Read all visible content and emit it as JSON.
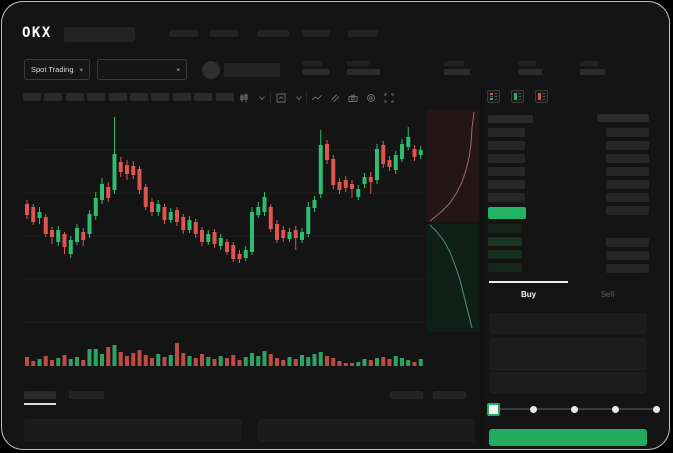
{
  "brand": {
    "name": "OKX"
  },
  "colors": {
    "background": "#141414",
    "candle_green": "#2ebd70",
    "candle_red": "#de544e",
    "accent_green": "#23ab5f",
    "last_price_green": "#23b565",
    "placeholder": "#262626"
  },
  "header": {
    "nav_item_count": 5
  },
  "market_bar": {
    "pair_selector": {
      "label": "Spot Trading"
    },
    "secondary_selector": {
      "label": ""
    },
    "stat_group_count": 5
  },
  "chart_toolbar": {
    "timeframe_count": 10,
    "icons": [
      "candle-style-icon",
      "chevron-down-icon",
      "indicator-box-icon",
      "chevron-down-icon",
      "line-wave-icon",
      "compare-slash-icon",
      "camera-icon",
      "settings-gear-icon",
      "fullscreen-icon"
    ]
  },
  "chart_data": {
    "type": "candlestick_with_volume",
    "title": "",
    "xlabel": "",
    "ylabel": "",
    "grid": "horizontal",
    "gridline_count": 5,
    "candles_ohlc": [
      [
        98,
        102,
        83,
        87
      ],
      [
        95,
        98,
        77,
        80
      ],
      [
        84,
        95,
        78,
        90
      ],
      [
        85,
        88,
        65,
        68
      ],
      [
        72,
        75,
        58,
        65
      ],
      [
        60,
        76,
        56,
        72
      ],
      [
        68,
        70,
        48,
        55
      ],
      [
        48,
        66,
        44,
        62
      ],
      [
        60,
        78,
        57,
        74
      ],
      [
        70,
        74,
        56,
        62
      ],
      [
        68,
        92,
        64,
        88
      ],
      [
        86,
        110,
        82,
        104
      ],
      [
        102,
        124,
        98,
        118
      ],
      [
        115,
        120,
        100,
        104
      ],
      [
        112,
        185,
        108,
        148
      ],
      [
        140,
        145,
        125,
        130
      ],
      [
        137,
        142,
        122,
        128
      ],
      [
        136,
        141,
        123,
        127
      ],
      [
        133,
        136,
        108,
        112
      ],
      [
        115,
        118,
        92,
        95
      ],
      [
        100,
        104,
        86,
        90
      ],
      [
        90,
        102,
        86,
        98
      ],
      [
        95,
        98,
        78,
        82
      ],
      [
        82,
        94,
        79,
        90
      ],
      [
        92,
        95,
        76,
        80
      ],
      [
        85,
        88,
        68,
        72
      ],
      [
        72,
        86,
        69,
        82
      ],
      [
        80,
        83,
        64,
        68
      ],
      [
        72,
        75,
        56,
        60
      ],
      [
        60,
        72,
        57,
        68
      ],
      [
        70,
        73,
        54,
        58
      ],
      [
        56,
        68,
        52,
        64
      ],
      [
        60,
        63,
        47,
        50
      ],
      [
        57,
        60,
        40,
        43
      ],
      [
        48,
        52,
        39,
        43
      ],
      [
        44,
        56,
        41,
        52
      ],
      [
        50,
        95,
        47,
        90
      ],
      [
        87,
        100,
        84,
        95
      ],
      [
        90,
        110,
        86,
        105
      ],
      [
        95,
        98,
        70,
        73
      ],
      [
        78,
        82,
        59,
        62
      ],
      [
        72,
        76,
        60,
        64
      ],
      [
        63,
        74,
        60,
        70
      ],
      [
        72,
        76,
        52,
        64
      ],
      [
        62,
        74,
        59,
        70
      ],
      [
        68,
        100,
        65,
        95
      ],
      [
        94,
        106,
        90,
        102
      ],
      [
        108,
        172,
        104,
        157
      ],
      [
        158,
        162,
        138,
        142
      ],
      [
        143,
        147,
        113,
        117
      ],
      [
        120,
        124,
        108,
        112
      ],
      [
        122,
        126,
        110,
        114
      ],
      [
        118,
        122,
        104,
        113
      ],
      [
        105,
        117,
        102,
        113
      ],
      [
        118,
        129,
        114,
        125
      ],
      [
        125,
        130,
        108,
        120
      ],
      [
        122,
        158,
        118,
        153
      ],
      [
        157,
        161,
        134,
        138
      ],
      [
        142,
        146,
        131,
        135
      ],
      [
        132,
        151,
        128,
        147
      ],
      [
        143,
        163,
        140,
        158
      ],
      [
        155,
        175,
        152,
        165
      ],
      [
        153,
        157,
        141,
        145
      ],
      [
        147,
        156,
        143,
        152
      ]
    ],
    "volume": [
      9,
      5,
      7,
      10,
      6,
      8,
      11,
      7,
      9,
      6,
      17,
      17,
      12,
      19,
      21,
      14,
      10,
      13,
      16,
      11,
      8,
      12,
      9,
      11,
      23,
      13,
      10,
      8,
      12,
      9,
      7,
      10,
      8,
      11,
      6,
      9,
      13,
      10,
      15,
      12,
      8,
      6,
      9,
      7,
      11,
      9,
      12,
      14,
      10,
      8,
      5,
      3,
      3,
      4,
      7,
      6,
      8,
      9,
      7,
      10,
      8,
      6,
      4,
      7
    ]
  },
  "depth_chart": {
    "ask_line": [
      [
        47,
        2
      ],
      [
        45,
        18
      ],
      [
        44,
        34
      ],
      [
        42,
        48
      ],
      [
        39,
        60
      ],
      [
        35,
        72
      ],
      [
        29,
        84
      ],
      [
        22,
        94
      ],
      [
        13,
        103
      ],
      [
        3,
        111
      ]
    ],
    "bid_line": [
      [
        3,
        115
      ],
      [
        10,
        122
      ],
      [
        17,
        131
      ],
      [
        23,
        142
      ],
      [
        28,
        155
      ],
      [
        33,
        170
      ],
      [
        37,
        186
      ],
      [
        41,
        202
      ],
      [
        45,
        218
      ]
    ],
    "ask_fill": "#241518",
    "bid_fill": "#0e1f18",
    "ask_stroke": "#9a6a6e",
    "bid_stroke": "#4d8d78"
  },
  "order_book": {
    "view_icons": [
      "book-combined-icon",
      "book-bids-icon",
      "book-asks-icon"
    ],
    "ask_price_rows": 6,
    "ask_amount_rows": 7,
    "bid_price_rows": 4,
    "bid_amount_rows": 3,
    "bid_row_colors": [
      "rgba(35,181,101,0.10)",
      "rgba(35,181,101,0.20)",
      "rgba(35,181,101,0.16)",
      "rgba(35,181,101,0.13)"
    ]
  },
  "trade_panel": {
    "tabs": [
      {
        "label": "Buy",
        "active": true
      },
      {
        "label": "Sell",
        "active": false
      }
    ],
    "field_count": 3,
    "slider": {
      "value_percent": 0,
      "stop_count": 5
    },
    "submit_button": {
      "label": "",
      "color": "#23ab5f"
    }
  },
  "bottom_panel": {
    "tab_count": 2,
    "action_count": 2,
    "row_count": 2
  }
}
